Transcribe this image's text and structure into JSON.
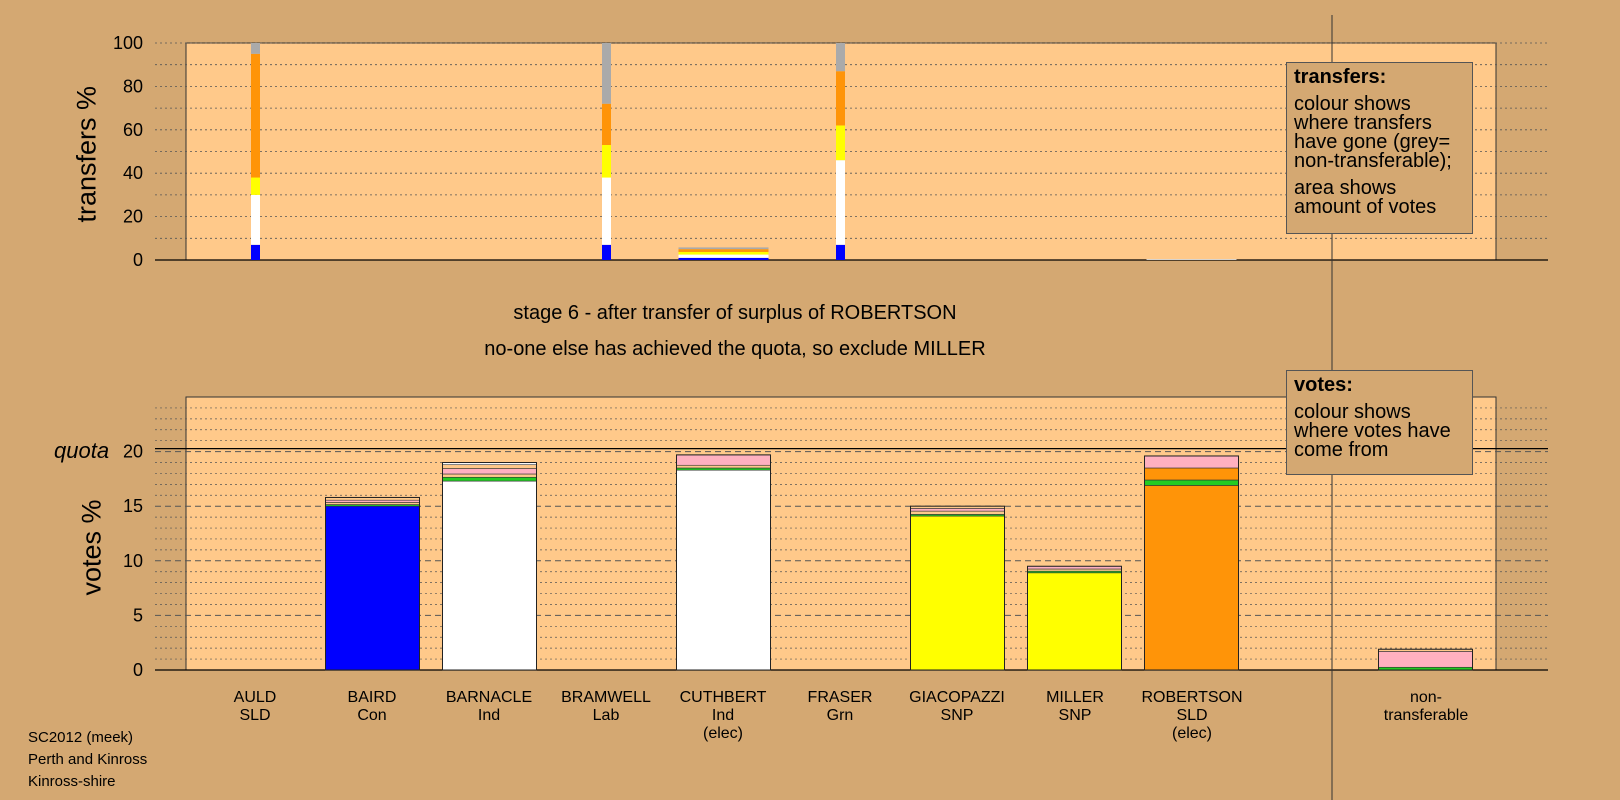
{
  "stage_line": "stage 6 - after transfer of surplus of ROBERTSON",
  "action_line": "no-one else has achieved the quota, so exclude MILLER",
  "quota_label": "quota",
  "transfers_legend": {
    "title": "transfers:",
    "line1": "colour shows where transfers have gone (grey= non-transferable);",
    "line2": "area shows amount of votes"
  },
  "votes_legend": {
    "title": "votes:",
    "line1": "colour shows where votes have come from"
  },
  "footer": {
    "line1": "SC2012 (meek)",
    "line2": "Perth and Kinross",
    "line3": "Kinross-shire"
  },
  "candidates": [
    {
      "name": "AULD",
      "party": "SLD",
      "note": ""
    },
    {
      "name": "BAIRD",
      "party": "Con",
      "note": ""
    },
    {
      "name": "BARNACLE",
      "party": "Ind",
      "note": ""
    },
    {
      "name": "BRAMWELL",
      "party": "Lab",
      "note": ""
    },
    {
      "name": "CUTHBERT",
      "party": "Ind",
      "note": "(elec)"
    },
    {
      "name": "FRASER",
      "party": "Grn",
      "note": ""
    },
    {
      "name": "GIACOPAZZI",
      "party": "SNP",
      "note": ""
    },
    {
      "name": "MILLER",
      "party": "SNP",
      "note": ""
    },
    {
      "name": "ROBERTSON",
      "party": "SLD",
      "note": "(elec)"
    },
    {
      "name": "non-",
      "party": "transferable",
      "note": ""
    }
  ],
  "colors": {
    "background": "#d4a872",
    "plot": "#ffc98a",
    "Con": "#0000ff",
    "Ind": "#ffffff",
    "SNP": "#ffff00",
    "SLD": "#ff9408",
    "nontransferable": "#aaaaaa",
    "pink": "#ffb0c0",
    "green": "#22cc22",
    "grey": "#a8a8a8"
  },
  "chart_data": [
    {
      "type": "bar",
      "title": "",
      "ylabel": "transfers %",
      "ylim": [
        0,
        100
      ],
      "yticks": [
        0,
        20,
        40,
        60,
        80,
        100
      ],
      "transfers": [
        {
          "index": 0,
          "width": "thin",
          "segments": [
            {
              "value": 7,
              "color": "#0000ff"
            },
            {
              "value": 23,
              "color": "#ffffff"
            },
            {
              "value": 8,
              "color": "#ffff00"
            },
            {
              "value": 57,
              "color": "#ff9408"
            },
            {
              "value": 5,
              "color": "#aaaaaa"
            }
          ]
        },
        {
          "index": 3,
          "width": "thin",
          "segments": [
            {
              "value": 7,
              "color": "#0000ff"
            },
            {
              "value": 31,
              "color": "#ffffff"
            },
            {
              "value": 15,
              "color": "#ffff00"
            },
            {
              "value": 19,
              "color": "#ff9408"
            },
            {
              "value": 28,
              "color": "#aaaaaa"
            }
          ]
        },
        {
          "index": 4,
          "width": "full",
          "segments": [
            {
              "value": 1,
              "color": "#0000ff"
            },
            {
              "value": 1.5,
              "color": "#ffffff"
            },
            {
              "value": 1.2,
              "color": "#ffff00"
            },
            {
              "value": 1.3,
              "color": "#ff9408"
            },
            {
              "value": 0.8,
              "color": "#aaaaaa"
            }
          ]
        },
        {
          "index": 5,
          "width": "thin",
          "segments": [
            {
              "value": 7,
              "color": "#0000ff"
            },
            {
              "value": 39,
              "color": "#ffffff"
            },
            {
              "value": 16,
              "color": "#ffff00"
            },
            {
              "value": 25,
              "color": "#ff9408"
            },
            {
              "value": 13,
              "color": "#aaaaaa"
            }
          ]
        },
        {
          "index": 8,
          "width": "full",
          "segments": [
            {
              "value": 0.4,
              "color": "#dddddd"
            }
          ]
        }
      ]
    },
    {
      "type": "bar",
      "title": "",
      "ylabel": "votes %",
      "ylim": [
        0,
        25
      ],
      "yticks": [
        0,
        5,
        10,
        15,
        20
      ],
      "quota": 20,
      "categories": [
        "AULD SLD",
        "BAIRD Con",
        "BARNACLE Ind",
        "BRAMWELL Lab",
        "CUTHBERT Ind (elec)",
        "FRASER Grn",
        "GIACOPAZZI SNP",
        "MILLER SNP",
        "ROBERTSON SLD (elec)",
        "non-transferable"
      ],
      "totals": [
        0,
        15.8,
        19.0,
        0,
        19.7,
        0,
        15.0,
        9.5,
        19.6,
        1.9
      ],
      "segments": [
        [],
        [
          {
            "value": 15.0,
            "color": "#0000ff"
          },
          {
            "value": 0.15,
            "color": "#22cc22"
          },
          {
            "value": 0.2,
            "color": "#ffc98a"
          },
          {
            "value": 0.2,
            "color": "#ffb0c0"
          },
          {
            "value": 0.25,
            "color": "#ffc98a"
          }
        ],
        [
          {
            "value": 17.3,
            "color": "#ffffff"
          },
          {
            "value": 0.35,
            "color": "#22cc22"
          },
          {
            "value": 0.3,
            "color": "#ffc98a"
          },
          {
            "value": 0.5,
            "color": "#ffb0c0"
          },
          {
            "value": 0.35,
            "color": "#ffc98a"
          },
          {
            "value": 0.2,
            "color": "#ffffff"
          }
        ],
        [],
        [
          {
            "value": 18.3,
            "color": "#ffffff"
          },
          {
            "value": 0.2,
            "color": "#22cc22"
          },
          {
            "value": 0.25,
            "color": "#ffc98a"
          },
          {
            "value": 0.95,
            "color": "#ffb0c0"
          }
        ],
        [],
        [
          {
            "value": 14.1,
            "color": "#ffff00"
          },
          {
            "value": 0.15,
            "color": "#22cc22"
          },
          {
            "value": 0.3,
            "color": "#ffc98a"
          },
          {
            "value": 0.25,
            "color": "#ffb0c0"
          },
          {
            "value": 0.2,
            "color": "#ffc98a"
          }
        ],
        [
          {
            "value": 8.9,
            "color": "#ffff00"
          },
          {
            "value": 0.15,
            "color": "#22cc22"
          },
          {
            "value": 0.2,
            "color": "#ffc98a"
          },
          {
            "value": 0.25,
            "color": "#ffb0c0"
          }
        ],
        [
          {
            "value": 16.9,
            "color": "#ff9408"
          },
          {
            "value": 0.5,
            "color": "#22cc22"
          },
          {
            "value": 1.1,
            "color": "#ff9408"
          },
          {
            "value": 1.1,
            "color": "#ffb0c0"
          }
        ],
        [
          {
            "value": 0.25,
            "color": "#22cc22"
          },
          {
            "value": 1.45,
            "color": "#ffb0c0"
          },
          {
            "value": 0.2,
            "color": "#ffc98a"
          }
        ]
      ]
    }
  ]
}
